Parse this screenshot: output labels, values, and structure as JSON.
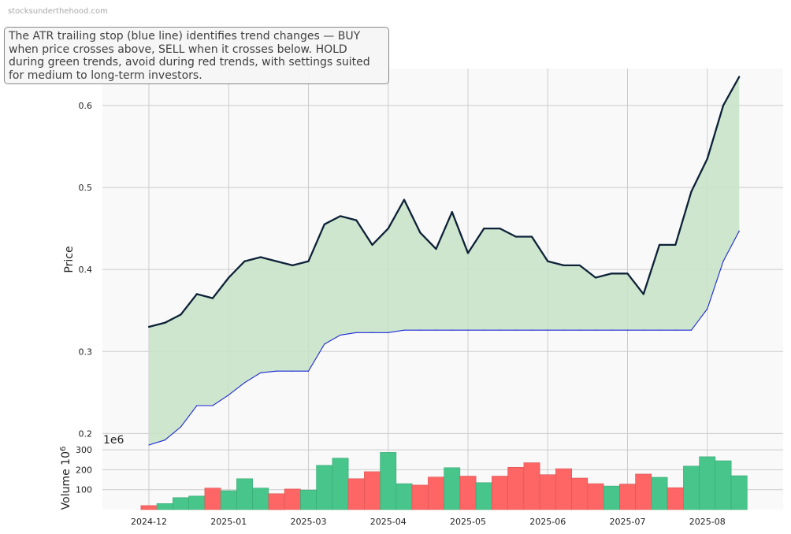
{
  "watermark": "stocksunderthehood.com",
  "annotation": "The ATR trailing stop (blue line) identifies trend changes — BUY when price crosses above, SELL when it crosses below. HOLD during green trends, avoid during red trends, with settings suited for medium to long-term investors.",
  "colors": {
    "price_line": "#0d2238",
    "stop_line": "#1a28d8",
    "fill_bull": "#c7e2c7",
    "vol_up": "#47c58a",
    "vol_down": "#fe6666",
    "plot_bg": "#f9f9f9",
    "grid": "#cccccc"
  },
  "chart_data": [
    {
      "type": "line",
      "ylabel": "Price",
      "ylim": [
        0.185,
        0.645
      ],
      "yticks": [
        0.2,
        0.3,
        0.4,
        0.5,
        0.6
      ],
      "ytick_labels": [
        "0.2",
        "0.3",
        "0.4",
        "0.5",
        "0.6"
      ],
      "xlim": [
        0,
        40
      ],
      "x_ticks": [
        {
          "index": 0,
          "label": "2024-12"
        },
        {
          "index": 5,
          "label": "2025-01"
        },
        {
          "index": 10,
          "label": "2025-03"
        },
        {
          "index": 15,
          "label": "2025-04"
        },
        {
          "index": 20,
          "label": "2025-05"
        },
        {
          "index": 25,
          "label": "2025-06"
        },
        {
          "index": 30,
          "label": "2025-07"
        },
        {
          "index": 35,
          "label": "2025-08"
        }
      ],
      "grid": true,
      "series": [
        {
          "name": "Price",
          "values": [
            0.33,
            0.335,
            0.345,
            0.37,
            0.365,
            0.39,
            0.41,
            0.415,
            0.41,
            0.405,
            0.41,
            0.455,
            0.465,
            0.46,
            0.43,
            0.45,
            0.485,
            0.445,
            0.425,
            0.47,
            0.42,
            0.45,
            0.45,
            0.44,
            0.44,
            0.41,
            0.405,
            0.405,
            0.39,
            0.395,
            0.395,
            0.37,
            0.43,
            0.43,
            0.495,
            0.535,
            0.6,
            0.635
          ]
        },
        {
          "name": "ATR Trailing Stop",
          "values": [
            0.186,
            0.192,
            0.208,
            0.234,
            0.234,
            0.247,
            0.262,
            0.274,
            0.276,
            0.276,
            0.276,
            0.309,
            0.32,
            0.323,
            0.323,
            0.323,
            0.326,
            0.326,
            0.326,
            0.326,
            0.326,
            0.326,
            0.326,
            0.326,
            0.326,
            0.326,
            0.326,
            0.326,
            0.326,
            0.326,
            0.326,
            0.326,
            0.326,
            0.326,
            0.326,
            0.352,
            0.41,
            0.447
          ]
        }
      ]
    },
    {
      "type": "bar",
      "ylabel": "Volume  10^6",
      "offset_label": "1e6",
      "ylim": [
        0,
        320
      ],
      "yticks": [
        100,
        200,
        300
      ],
      "ytick_labels": [
        "100",
        "200",
        "300"
      ],
      "grid": true,
      "values": [
        20,
        30,
        60,
        68,
        108,
        95,
        155,
        108,
        80,
        103,
        98,
        222,
        258,
        155,
        190,
        287,
        130,
        123,
        163,
        210,
        168,
        135,
        168,
        212,
        235,
        175,
        205,
        158,
        130,
        118,
        128,
        178,
        162,
        110,
        218,
        265,
        245,
        170
      ],
      "directions": [
        "down",
        "up",
        "up",
        "up",
        "down",
        "up",
        "up",
        "up",
        "down",
        "down",
        "up",
        "up",
        "up",
        "down",
        "down",
        "up",
        "up",
        "down",
        "down",
        "up",
        "down",
        "up",
        "down",
        "down",
        "down",
        "down",
        "down",
        "down",
        "down",
        "up",
        "down",
        "down",
        "up",
        "down",
        "up",
        "up",
        "up",
        "up"
      ]
    }
  ]
}
